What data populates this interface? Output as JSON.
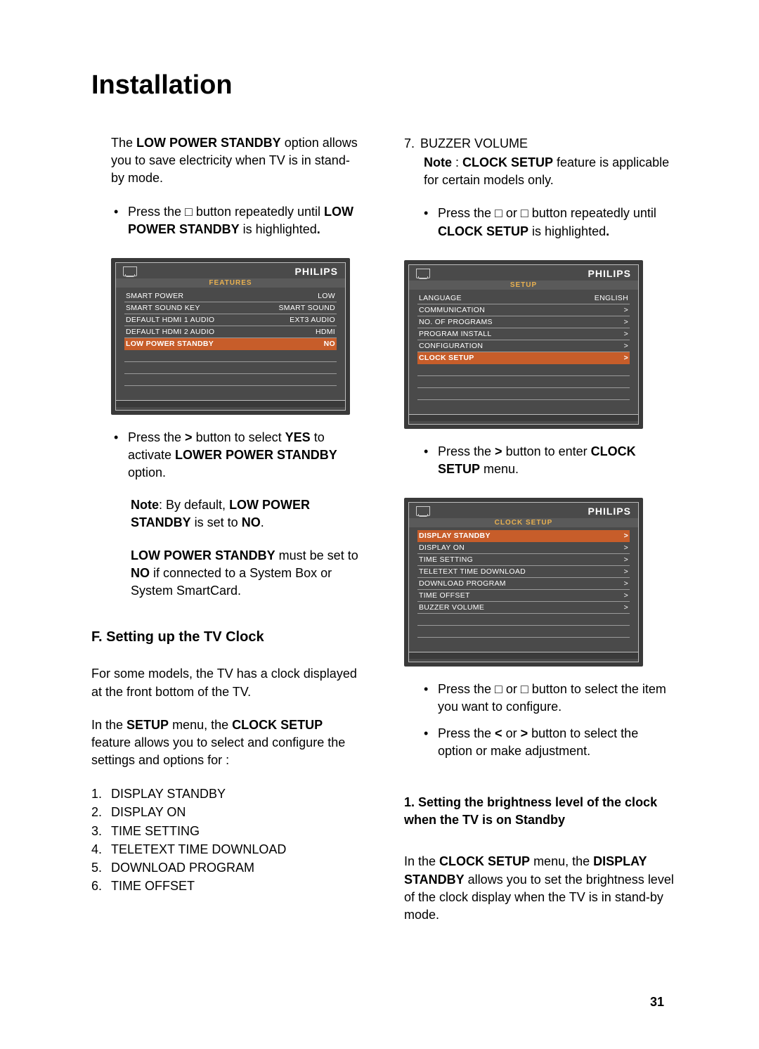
{
  "page_title": "Installation",
  "page_number": "31",
  "brand": "PHILIPS",
  "colors": {
    "page_bg": "#ffffff",
    "text": "#000000",
    "osd_outer": "#3a3a3a",
    "osd_inner": "#4a4a4a",
    "osd_border": "#bdbdbd",
    "osd_rowline": "#9a9a9a",
    "osd_title_text": "#e8b050",
    "osd_hl_bg": "#c75d2a"
  },
  "left": {
    "p1_pre": "The ",
    "p1_b": "LOW POWER STANDBY",
    "p1_post": " option allows you to save electricity when TV is in stand-by mode.",
    "b1_pre": "Press the  □  button repeatedly until ",
    "b1_b": "LOW POWER STANDBY",
    "b1_post": " is highlighted",
    "b1_dot": ".",
    "osd1": {
      "title": "FEATURES",
      "rows": [
        {
          "k": "SMART POWER",
          "v": "LOW",
          "hl": false
        },
        {
          "k": "SMART SOUND KEY",
          "v": "SMART SOUND",
          "hl": false
        },
        {
          "k": "DEFAULT HDMI 1 AUDIO",
          "v": "EXT3 AUDIO",
          "hl": false
        },
        {
          "k": "DEFAULT HDMI 2 AUDIO",
          "v": "HDMI",
          "hl": false
        },
        {
          "k": "LOW POWER STANDBY",
          "v": "NO",
          "hl": true
        }
      ],
      "blanks": 4
    },
    "b2_pre": "Press the  ",
    "b2_b1": ">",
    "b2_mid": "  button to select ",
    "b2_b2": "YES",
    "b2_mid2": " to activate ",
    "b2_b3": "LOWER POWER STANDBY",
    "b2_post": " option.",
    "p2_b1": "Note",
    "p2_mid": ": By default, ",
    "p2_b2": "LOW POWER STANDBY",
    "p2_mid2": " is set to ",
    "p2_b3": "NO",
    "p2_dot": ".",
    "p3_b1": "LOW POWER STANDBY",
    "p3_mid": " must be set to ",
    "p3_b2": "NO",
    "p3_post": " if connected to a System Box or System SmartCard.",
    "section_f": "F.  Setting up the TV Clock",
    "p4": "For some models, the TV has a clock displayed at the front bottom of the TV.",
    "p5_pre": "In the ",
    "p5_b1": "SETUP",
    "p5_mid": " menu, the ",
    "p5_b2": "CLOCK SETUP",
    "p5_post": " feature allows you to select and configure the settings and options for :",
    "list": [
      "DISPLAY STANDBY",
      "DISPLAY ON",
      "TIME SETTING",
      "TELETEXT TIME DOWNLOAD",
      "DOWNLOAD PROGRAM",
      "TIME OFFSET"
    ]
  },
  "right": {
    "item7_ix": "7.",
    "item7_label": "BUZZER VOLUME",
    "note_b1": "Note",
    "note_mid": " : ",
    "note_b2": "CLOCK SETUP",
    "note_post": " feature is applicable for certain models only.",
    "b1_pre": "Press the  □  or  □  button repeatedly until ",
    "b1_b": "CLOCK SETUP",
    "b1_post": " is highlighted",
    "b1_dot": ".",
    "osd2": {
      "title": "SETUP",
      "rows": [
        {
          "k": "LANGUAGE",
          "v": "ENGLISH",
          "hl": false
        },
        {
          "k": "COMMUNICATION",
          "v": ">",
          "hl": false
        },
        {
          "k": "NO. OF PROGRAMS",
          "v": ">",
          "hl": false
        },
        {
          "k": "PROGRAM INSTALL",
          "v": ">",
          "hl": false
        },
        {
          "k": "CONFIGURATION",
          "v": ">",
          "hl": false
        },
        {
          "k": "CLOCK SETUP",
          "v": ">",
          "hl": true
        }
      ],
      "blanks": 4
    },
    "b2_pre": "Press the  ",
    "b2_b1": ">",
    "b2_mid": "  button to enter ",
    "b2_b2": "CLOCK SETUP",
    "b2_post": " menu.",
    "osd3": {
      "title": "CLOCK SETUP",
      "rows": [
        {
          "k": "DISPLAY STANDBY",
          "v": ">",
          "hl": true
        },
        {
          "k": "DISPLAY ON",
          "v": ">",
          "hl": false
        },
        {
          "k": "TIME SETTING",
          "v": ">",
          "hl": false
        },
        {
          "k": "TELETEXT TIME DOWNLOAD",
          "v": ">",
          "hl": false
        },
        {
          "k": "DOWNLOAD PROGRAM",
          "v": ">",
          "hl": false
        },
        {
          "k": "TIME OFFSET",
          "v": ">",
          "hl": false
        },
        {
          "k": "BUZZER VOLUME",
          "v": ">",
          "hl": false
        }
      ],
      "blanks": 3
    },
    "b3": "Press the  □  or  □  button to select the item you want to configure.",
    "b4_pre": "Press the  ",
    "b4_b1": "<",
    "b4_mid": "  or  ",
    "b4_b2": ">",
    "b4_post": "  button to select the option or make adjustment.",
    "sec1": "1.  Setting the brightness level of the clock when the TV is on Standby",
    "p_last_pre": "In the ",
    "p_last_b1": "CLOCK SETUP",
    "p_last_mid": " menu, the ",
    "p_last_b2": "DISPLAY STANDBY",
    "p_last_post": " allows you to set the brightness level of the clock display when the TV is in stand-by mode."
  }
}
